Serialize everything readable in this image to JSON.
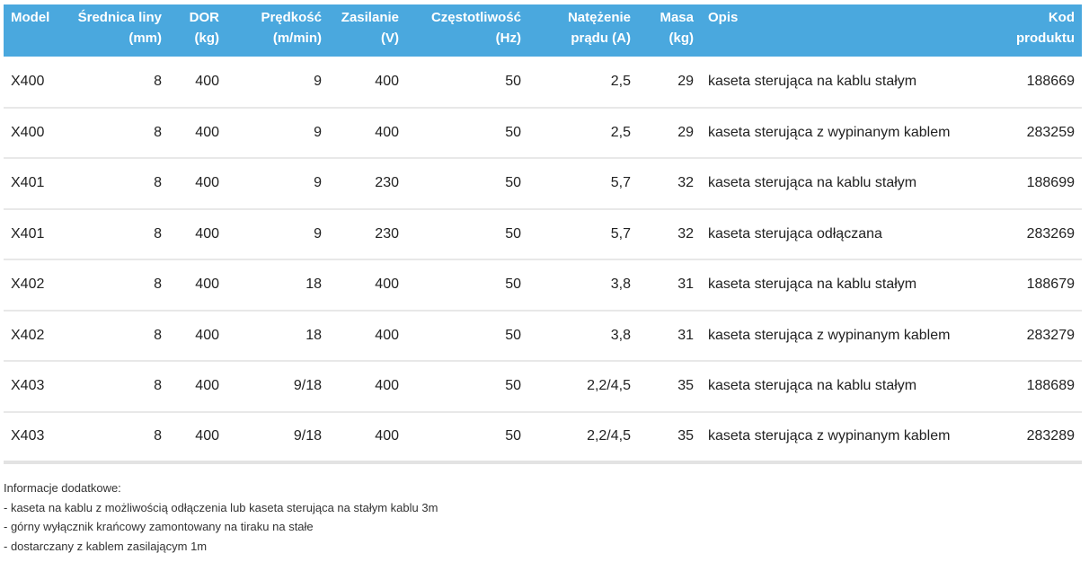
{
  "table": {
    "headers": [
      {
        "line1": "Model",
        "line2": "",
        "align": "l"
      },
      {
        "line1": "Średnica liny",
        "line2": "(mm)",
        "align": "r"
      },
      {
        "line1": "DOR",
        "line2": "(kg)",
        "align": "r"
      },
      {
        "line1": "Prędkość",
        "line2": "(m/min)",
        "align": "r"
      },
      {
        "line1": "Zasilanie",
        "line2": "(V)",
        "align": "r"
      },
      {
        "line1": "Częstotliwość",
        "line2": "(Hz)",
        "align": "r"
      },
      {
        "line1": "Natężenie",
        "line2": "prądu (A)",
        "align": "r"
      },
      {
        "line1": "Masa",
        "line2": "(kg)",
        "align": "r"
      },
      {
        "line1": "Opis",
        "line2": "",
        "align": "l"
      },
      {
        "line1": "Kod",
        "line2": "produktu",
        "align": "r"
      }
    ],
    "rows": [
      [
        "X400",
        "8",
        "400",
        "9",
        "400",
        "50",
        "2,5",
        "29",
        "kaseta sterująca na kablu stałym",
        "188669"
      ],
      [
        "X400",
        "8",
        "400",
        "9",
        "400",
        "50",
        "2,5",
        "29",
        "kaseta sterująca z wypinanym kablem",
        "283259"
      ],
      [
        "X401",
        "8",
        "400",
        "9",
        "230",
        "50",
        "5,7",
        "32",
        "kaseta sterująca na kablu stałym",
        "188699"
      ],
      [
        "X401",
        "8",
        "400",
        "9",
        "230",
        "50",
        "5,7",
        "32",
        "kaseta sterująca odłączana",
        "283269"
      ],
      [
        "X402",
        "8",
        "400",
        "18",
        "400",
        "50",
        "3,8",
        "31",
        "kaseta sterująca na kablu stałym",
        "188679"
      ],
      [
        "X402",
        "8",
        "400",
        "18",
        "400",
        "50",
        "3,8",
        "31",
        "kaseta sterująca z wypinanym kablem",
        "283279"
      ],
      [
        "X403",
        "8",
        "400",
        "9/18",
        "400",
        "50",
        "2,2/4,5",
        "35",
        "kaseta sterująca na kablu stałym",
        "188689"
      ],
      [
        "X403",
        "8",
        "400",
        "9/18",
        "400",
        "50",
        "2,2/4,5",
        "35",
        "kaseta sterująca z wypinanym kablem",
        "283289"
      ]
    ]
  },
  "notes": {
    "title": "Informacje dodatkowe:",
    "items": [
      "- kaseta na kablu z możliwością odłączenia lub kaseta sterująca na stałym kablu 3m",
      "- górny wyłącznik krańcowy zamontowany na tiraku na stałe",
      "- dostarczany z kablem zasilającym 1m"
    ]
  },
  "colors": {
    "header_bg": "#4aa8de",
    "header_text": "#ffffff",
    "row_divider": "#e8e8e8"
  }
}
